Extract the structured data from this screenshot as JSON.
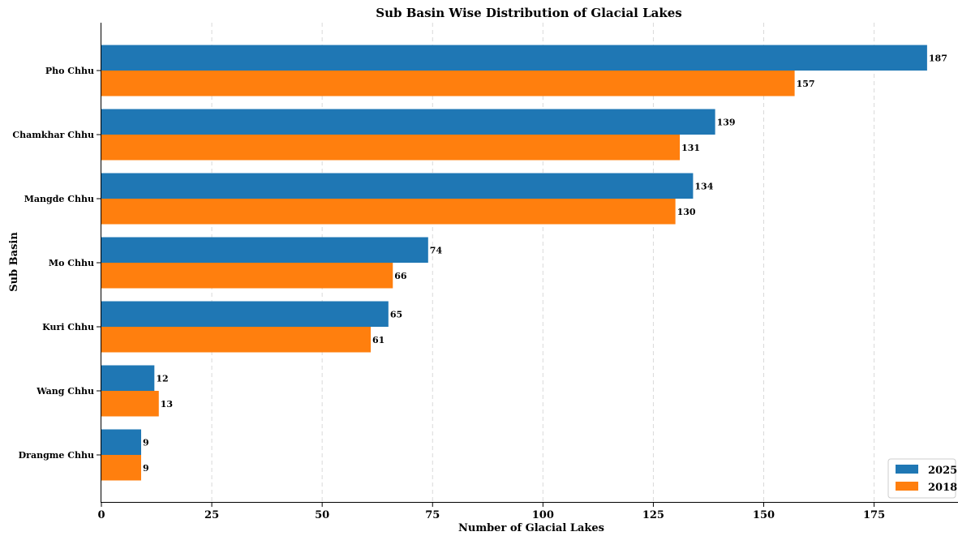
{
  "chart_data": {
    "type": "bar",
    "orientation": "horizontal",
    "title": "Sub Basin Wise Distribution of Glacial Lakes",
    "xlabel": "Number of Glacial Lakes",
    "ylabel": "Sub Basin",
    "categories": [
      "Pho Chhu",
      "Chamkhar Chhu",
      "Mangde Chhu",
      "Mo Chhu",
      "Kuri Chhu",
      "Wang Chhu",
      "Drangme Chhu"
    ],
    "series": [
      {
        "name": "2025",
        "color": "#1f77b4",
        "values": [
          187,
          139,
          134,
          74,
          65,
          12,
          9
        ]
      },
      {
        "name": "2018",
        "color": "#ff7f0e",
        "values": [
          157,
          131,
          130,
          66,
          61,
          13,
          9
        ]
      }
    ],
    "xlim": [
      0,
      194
    ],
    "xticks": [
      0,
      25,
      50,
      75,
      100,
      125,
      150,
      175
    ],
    "grid": "x-dashed",
    "legend_position": "bottom-right"
  }
}
